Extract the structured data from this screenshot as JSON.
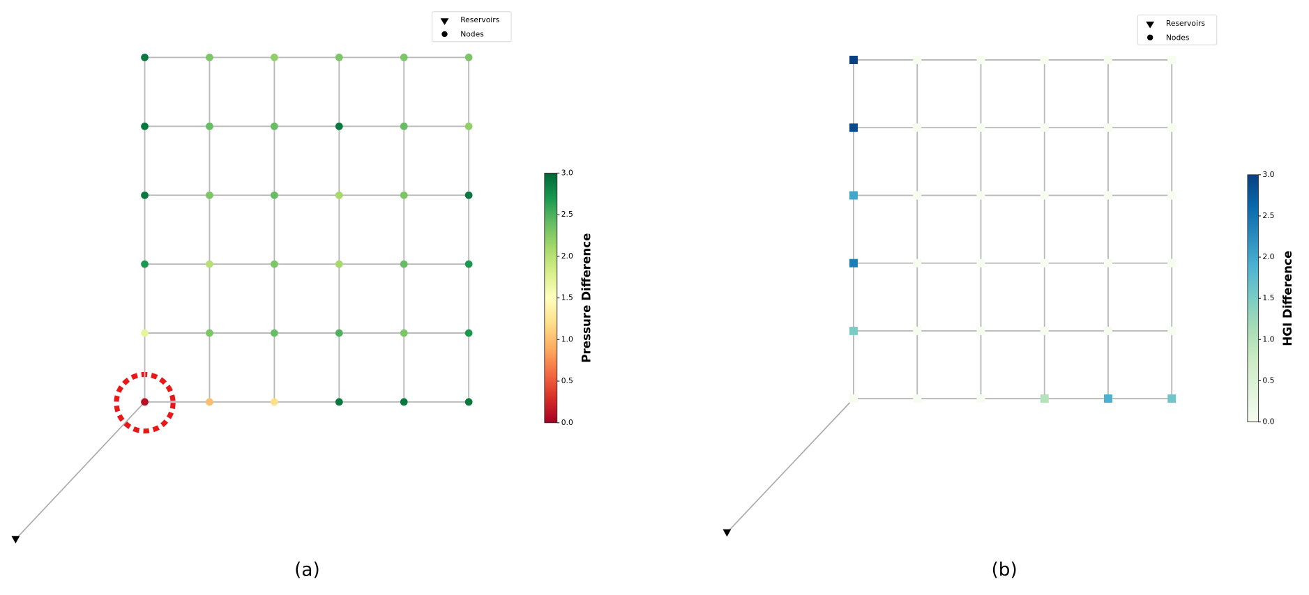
{
  "panels": [
    {
      "label": "(a)",
      "legend": [
        "Reservoirs",
        "Nodes"
      ],
      "node_shape": "circle",
      "colorbar": {
        "title": "Pressure Difference",
        "lim": [
          0,
          3
        ],
        "ticks": [
          {
            "value": 0,
            "label": "0.0"
          },
          {
            "value": 0.5,
            "label": "0.5"
          },
          {
            "value": 1,
            "label": "1.0"
          },
          {
            "value": 1.5,
            "label": "1.5"
          },
          {
            "value": 2,
            "label": "2.0"
          },
          {
            "value": 2.5,
            "label": "2.5"
          },
          {
            "value": 3,
            "label": "3.0"
          }
        ],
        "colors": [
          "#a50026",
          "#d73027",
          "#f46d43",
          "#fdae61",
          "#fee08b",
          "#ffffbf",
          "#d9ef8b",
          "#a6d96a",
          "#66bd63",
          "#1a9850",
          "#006837"
        ]
      },
      "nodes": [
        [
          2.9,
          2.3,
          2.2,
          2.3,
          2.3,
          2.3
        ],
        [
          2.9,
          2.4,
          2.4,
          2.9,
          2.4,
          2.2
        ],
        [
          2.9,
          2.3,
          2.4,
          2.1,
          2.3,
          2.9
        ],
        [
          2.7,
          2.0,
          2.3,
          2.1,
          2.4,
          2.7
        ],
        [
          1.7,
          2.3,
          2.4,
          2.5,
          2.3,
          2.7
        ],
        [
          0.1,
          1.0,
          1.2,
          2.9,
          2.9,
          2.9
        ]
      ]
    },
    {
      "label": "(b)",
      "legend": [
        "Reservoirs",
        "Nodes"
      ],
      "node_shape": "square",
      "colorbar": {
        "title": "HGI Difference",
        "lim": [
          0,
          3
        ],
        "ticks": [
          {
            "value": 0,
            "label": "0.0"
          },
          {
            "value": 0.5,
            "label": "0.5"
          },
          {
            "value": 1,
            "label": "1.0"
          },
          {
            "value": 1.5,
            "label": "1.5"
          },
          {
            "value": 2,
            "label": "2.0"
          },
          {
            "value": 2.5,
            "label": "2.5"
          },
          {
            "value": 3,
            "label": "3.0"
          }
        ],
        "colors": [
          "#f7fcf0",
          "#e0f3db",
          "#ccebc5",
          "#a8ddb5",
          "#7bccc4",
          "#4eb3d3",
          "#2b8cbe",
          "#0868ac",
          "#084081"
        ]
      },
      "nodes": [
        [
          3.0,
          0,
          0,
          0,
          0,
          0
        ],
        [
          2.9,
          0,
          0,
          0,
          0,
          0
        ],
        [
          2.0,
          0,
          0,
          0,
          0,
          0
        ],
        [
          2.4,
          0,
          0,
          0,
          0,
          0
        ],
        [
          1.5,
          0,
          0,
          0,
          0,
          0
        ],
        [
          0,
          0,
          0,
          1.0,
          1.9,
          1.6
        ]
      ]
    }
  ]
}
